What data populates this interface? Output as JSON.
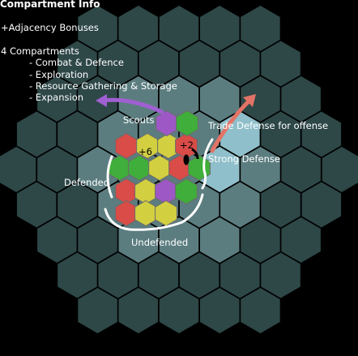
{
  "info": {
    "title": "Compartment Info",
    "adjacency": "+Adjacency Bonuses",
    "compartments_heading": "4 Compartments",
    "compartments": [
      "- Combat & Defence",
      "- Exploration",
      "- Resource Gathering & Storage",
      "- Expansion"
    ]
  },
  "annotations": {
    "scouts": "Scouts",
    "trade": "Trade Defense for offense",
    "strong": "Strong Defense",
    "defended": "Defended",
    "undefended": "Undefended",
    "bonus_plus6": "+6",
    "bonus_plus2": "+2"
  },
  "colors": {
    "background": "#000000",
    "hex_dark": "#2e4747",
    "hex_mid": "#5c7d80",
    "hex_light": "#8fbfca",
    "combat": "#d94c47",
    "exploration": "#9d58c6",
    "resource": "#d2cf40",
    "expansion": "#3fae3a",
    "scouts_arrow": "#a05fd2",
    "trade_arrow": "#e27366"
  }
}
